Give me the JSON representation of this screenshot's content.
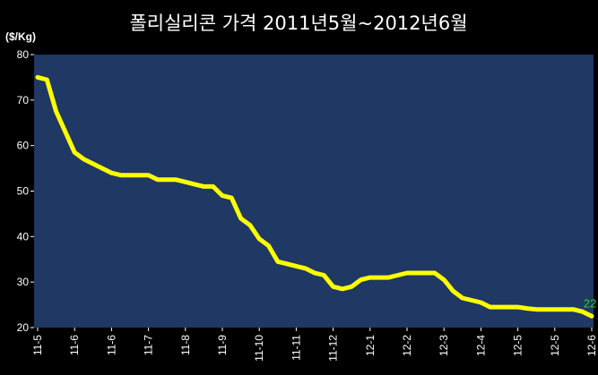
{
  "chart_data": {
    "type": "line",
    "title": "폴리실리콘 가격 2011년5월~2012년6월",
    "unit_label": "($/Kg)",
    "ylim": [
      20,
      80
    ],
    "yticks": [
      20,
      30,
      40,
      50,
      60,
      70,
      80
    ],
    "x_tick_labels": [
      "11-5",
      "11-6",
      "11-6",
      "11-7",
      "11-8",
      "11-9",
      "11-10",
      "11-11",
      "11-12",
      "12-1",
      "12-2",
      "12-3",
      "12-4",
      "12-5",
      "12-5",
      "12-6"
    ],
    "grid": false,
    "series": [
      {
        "color": "#ffff00",
        "values": [
          75,
          74.5,
          67.5,
          63,
          58.5,
          57,
          56,
          55,
          54,
          53.5,
          53.5,
          53.5,
          53.5,
          52.5,
          52.5,
          52.5,
          52,
          51.5,
          51,
          51,
          49,
          48.5,
          44,
          42.5,
          39.5,
          38,
          34.5,
          34,
          33.5,
          33,
          32,
          31.5,
          29,
          28.5,
          29,
          30.5,
          31,
          31,
          31,
          31.5,
          32,
          32,
          32,
          32,
          30.5,
          28,
          26.5,
          26,
          25.5,
          24.5,
          24.5,
          24.5,
          24.5,
          24.2,
          24,
          24,
          24,
          24,
          24,
          23.5,
          22.5
        ]
      }
    ],
    "data_label": "22",
    "colors": {
      "background": "#000000",
      "plot_background": "#1f3864",
      "line": "#ffff00",
      "data_label": "#33cc33"
    }
  }
}
